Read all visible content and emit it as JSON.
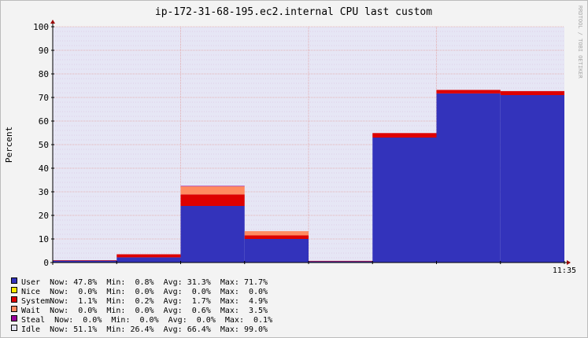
{
  "title": "ip-172-31-68-195.ec2.internal CPU last custom",
  "watermark": "RRDTOOL / TOBI OETIKER",
  "chart_data": {
    "type": "area",
    "stacked": true,
    "ylabel": "Percent",
    "ylim": [
      0,
      100
    ],
    "yticks": [
      "0",
      "10",
      "20",
      "30",
      "40",
      "50",
      "60",
      "70",
      "80",
      "90",
      "100"
    ],
    "x_label_text": "11:35",
    "segments": 8,
    "grid": true,
    "background_color": "#e6e6f5",
    "series": [
      {
        "key": "user",
        "name": "User",
        "color": "#3333bb",
        "values": [
          0.8,
          2.2,
          24.0,
          10.0,
          0.5,
          53.0,
          71.7,
          71.0
        ]
      },
      {
        "key": "system",
        "name": "System",
        "color": "#dd0000",
        "values": [
          0.2,
          1.3,
          4.9,
          1.5,
          0.2,
          1.9,
          1.5,
          1.7
        ]
      },
      {
        "key": "wait",
        "name": "Wait",
        "color": "#ff8a60",
        "values": [
          0.0,
          0.0,
          3.5,
          1.8,
          0.0,
          0.0,
          0.0,
          0.0
        ]
      },
      {
        "key": "steal",
        "name": "Steal",
        "color": "#990099",
        "values": [
          0.0,
          0.0,
          0.1,
          0.0,
          0.0,
          0.0,
          0.0,
          0.0
        ]
      }
    ]
  },
  "legend": [
    {
      "color": "#3333bb",
      "text": "User  Now: 47.8%  Min:  0.8%  Avg: 31.3%  Max: 71.7%"
    },
    {
      "color": "#ffea00",
      "text": "Nice  Now:  0.0%  Min:  0.0%  Avg:  0.0%  Max:  0.0%"
    },
    {
      "color": "#dd0000",
      "text": "SystemNow:  1.1%  Min:  0.2%  Avg:  1.7%  Max:  4.9%"
    },
    {
      "color": "#ff8a60",
      "text": "Wait  Now:  0.0%  Min:  0.0%  Avg:  0.6%  Max:  3.5%"
    },
    {
      "color": "#990099",
      "text": "Steal  Now:  0.0%  Min:  0.0%  Avg:  0.0%  Max:  0.1%"
    },
    {
      "color": "#e2e2f2",
      "text": "Idle  Now: 51.1%  Min: 26.4%  Avg: 66.4%  Max: 99.0%"
    }
  ]
}
